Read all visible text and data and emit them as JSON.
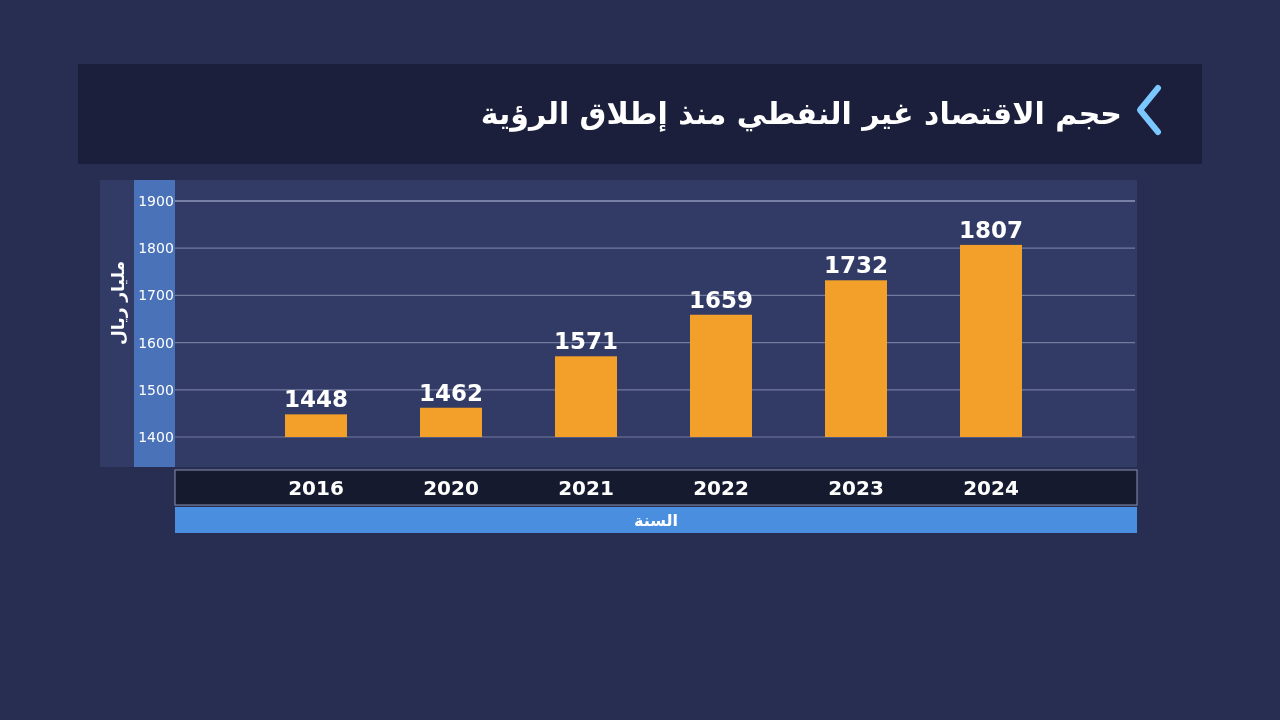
{
  "chart_data": {
    "type": "bar",
    "title": "حجم الاقتصاد غير النفطي منذ إطلاق الرؤية",
    "xlabel": "السنة",
    "ylabel": "مليار ريال",
    "categories": [
      "2016",
      "2020",
      "2021",
      "2022",
      "2023",
      "2024"
    ],
    "values": [
      1448,
      1462,
      1571,
      1659,
      1732,
      1807
    ],
    "color": "#f2a02a",
    "ylim": [
      1400,
      1900
    ],
    "yticks": [
      1400,
      1500,
      1600,
      1700,
      1800,
      1900
    ],
    "grid": "y",
    "data_labels": true
  }
}
